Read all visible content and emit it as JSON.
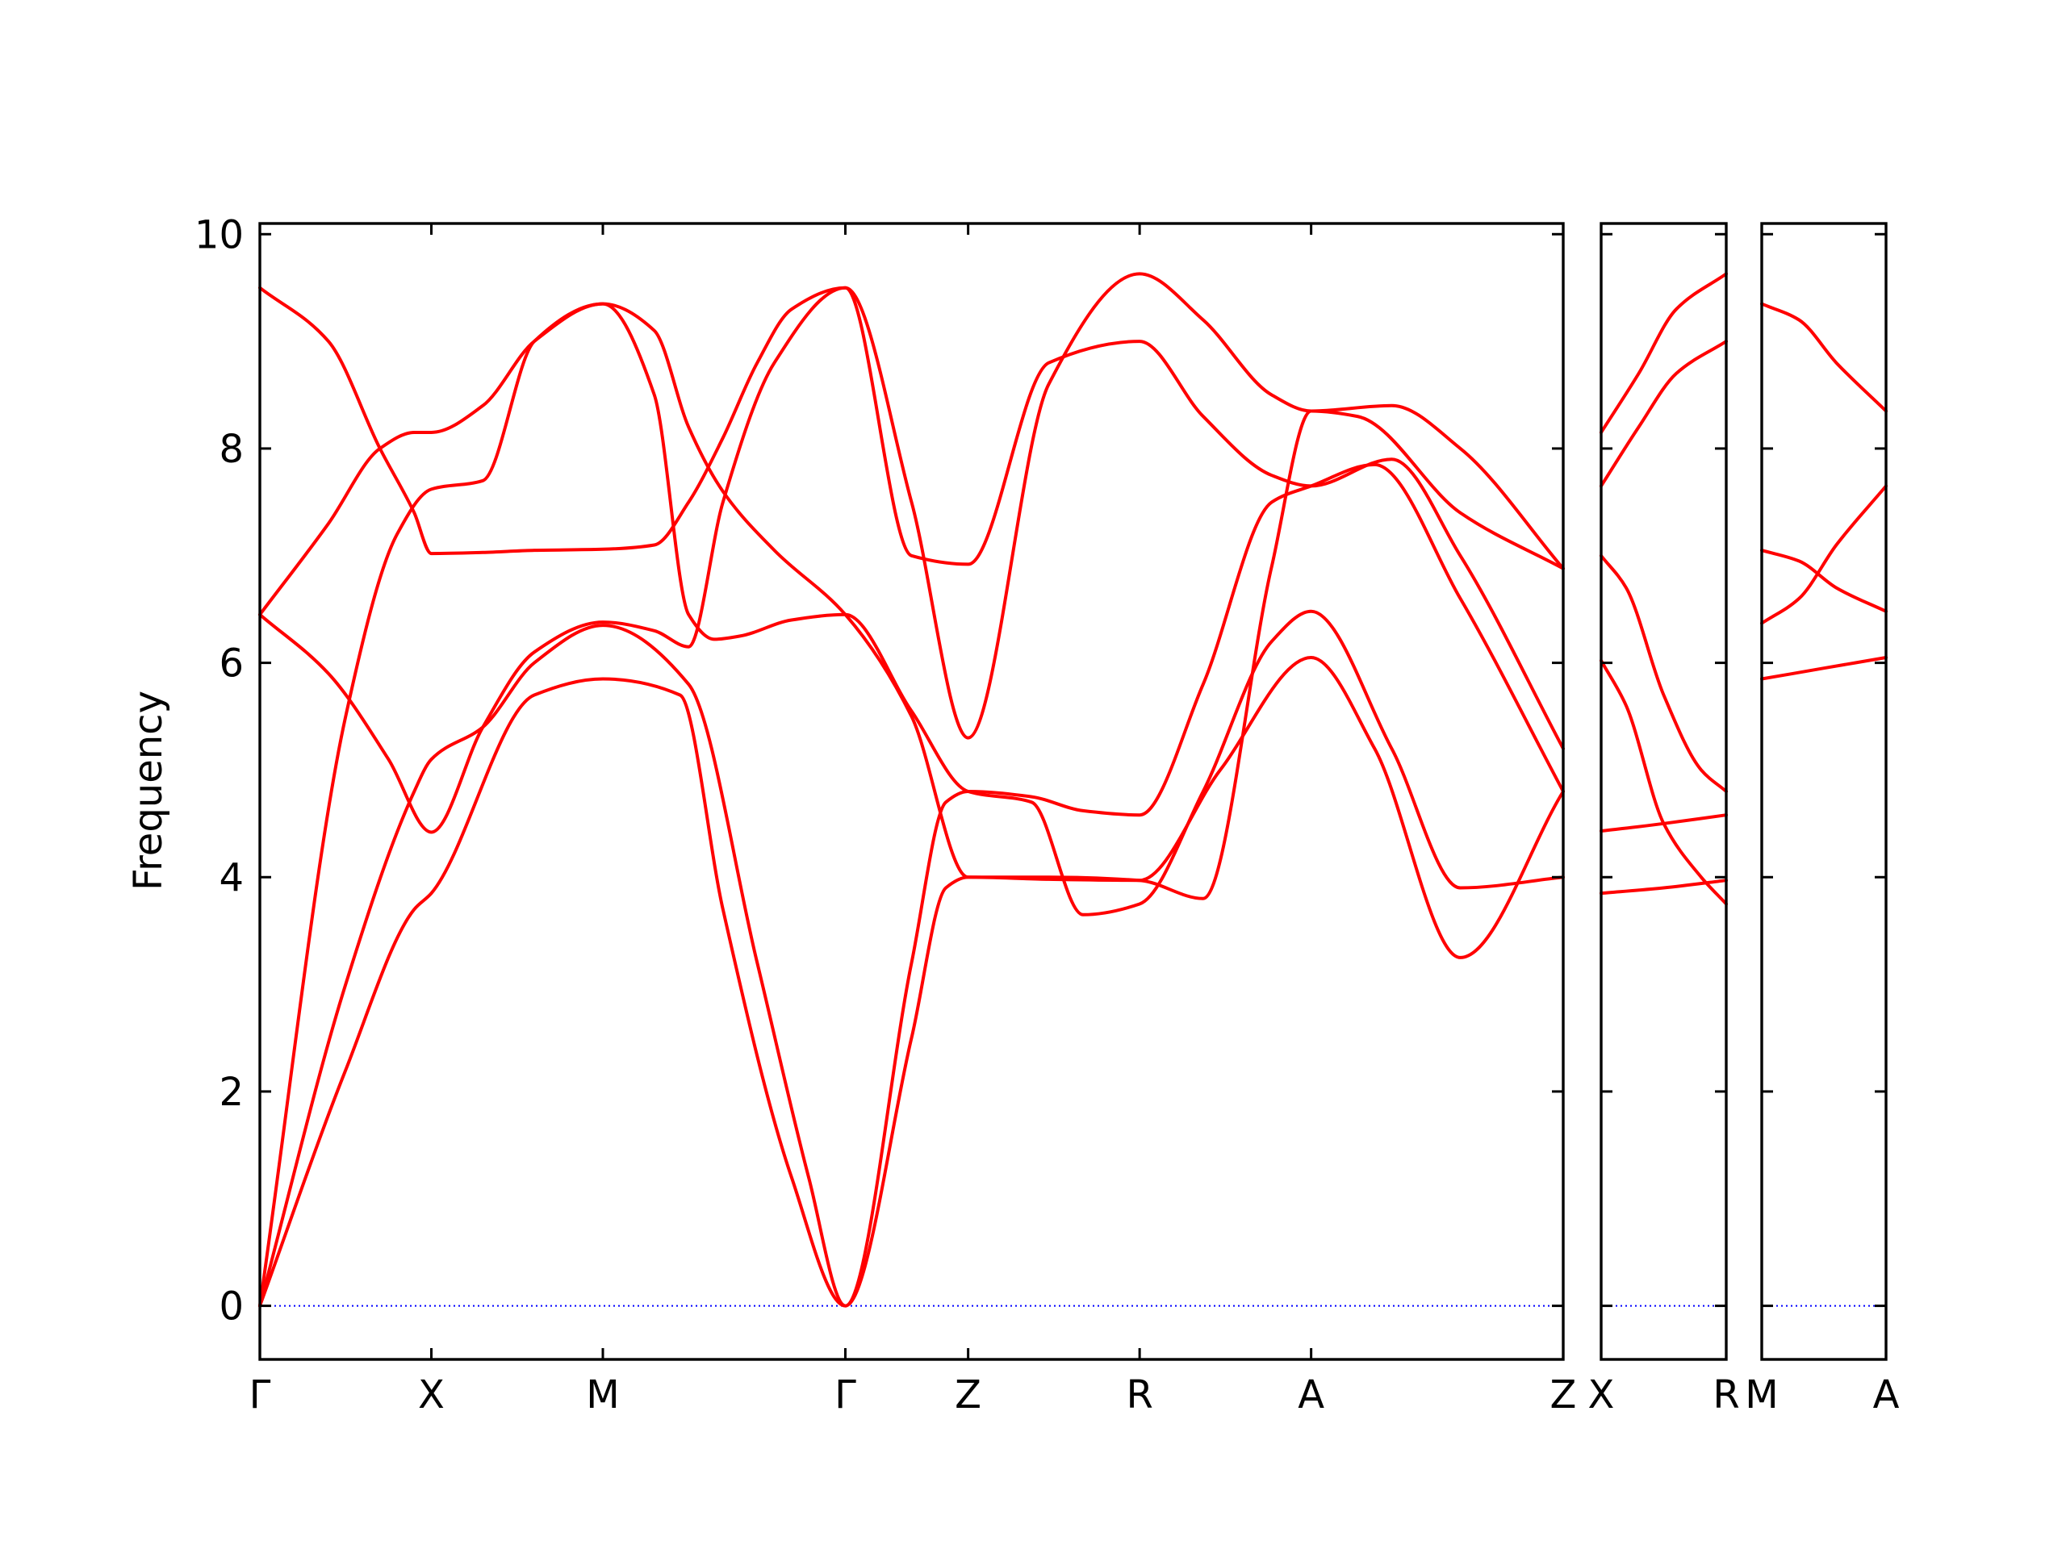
{
  "chart_data": {
    "type": "line",
    "title": "",
    "xlabel": "",
    "ylabel": "Frequency",
    "ylim": [
      -0.5,
      10.1
    ],
    "yticks": [
      0,
      2,
      4,
      6,
      8,
      10
    ],
    "colors": {
      "bands": "#ff0000",
      "zero_line": "#0000ff",
      "frame": "#000000"
    },
    "grid": false,
    "legend": "none",
    "panels": [
      {
        "xlim": [
          0,
          7.6
        ],
        "labels": [
          {
            "pos": 0,
            "text": "Γ"
          },
          {
            "pos": 1,
            "text": "X"
          },
          {
            "pos": 2,
            "text": "M"
          },
          {
            "pos": 3.414,
            "text": "Γ"
          },
          {
            "pos": 4.13,
            "text": "Z"
          },
          {
            "pos": 5.13,
            "text": "R"
          },
          {
            "pos": 6.13,
            "text": "A"
          },
          {
            "pos": 7.6,
            "text": "Z"
          }
        ],
        "series": [
          {
            "x": [
              0,
              0.5,
              0.9,
              1,
              1.6,
              2,
              2.45,
              2.7,
              3.1,
              3.414,
              3.8,
              4.0,
              4.13,
              4.6,
              5.13,
              5.6,
              6.13,
              6.5,
              7.0,
              7.6
            ],
            "values": [
              0,
              2.2,
              3.7,
              3.85,
              5.7,
              5.85,
              5.7,
              3.7,
              1.2,
              0,
              2.5,
              3.9,
              4.0,
              3.98,
              3.97,
              5.0,
              6.05,
              5.2,
              3.25,
              4.8
            ]
          },
          {
            "x": [
              0,
              0.5,
              0.9,
              1,
              1.3,
              1.6,
              2,
              2.5,
              2.9,
              3.2,
              3.414,
              3.8,
              4.0,
              4.13,
              4.5,
              4.8,
              5.13,
              5.5,
              5.9,
              6.13,
              6.5,
              7.0,
              7.6
            ],
            "values": [
              0,
              3.0,
              4.8,
              5.1,
              5.4,
              6.0,
              6.35,
              5.8,
              3.2,
              1.2,
              0,
              3.2,
              4.7,
              4.8,
              4.75,
              4.62,
              4.58,
              5.8,
              7.5,
              7.65,
              7.85,
              6.6,
              4.8
            ]
          },
          {
            "x": [
              0,
              0.5,
              0.8,
              1,
              1.3,
              1.6,
              2,
              2.3,
              2.5,
              2.65,
              2.8,
              3.1,
              3.414,
              3.8,
              4.13,
              4.5,
              4.8,
              5.13,
              5.5,
              5.9,
              6.13,
              6.6,
              7.0,
              7.6
            ],
            "values": [
              0,
              5.5,
              7.2,
              7.62,
              7.7,
              9.0,
              9.35,
              8.5,
              6.45,
              6.22,
              6.25,
              6.4,
              6.45,
              5.55,
              4.8,
              4.7,
              3.65,
              3.75,
              4.8,
              6.2,
              6.48,
              5.2,
              3.9,
              4.0
            ]
          },
          {
            "x": [
              0,
              0.4,
              0.75,
              1,
              1.3,
              1.6,
              2,
              2.3,
              2.5,
              2.7,
              3.0,
              3.414,
              3.8,
              4.13,
              4.6,
              5.13,
              5.5,
              5.9,
              6.13,
              6.6,
              7.0,
              7.6
            ],
            "values": [
              6.45,
              5.9,
              5.1,
              4.42,
              5.4,
              6.1,
              6.38,
              6.3,
              6.15,
              7.5,
              8.8,
              9.5,
              7.0,
              6.92,
              8.8,
              9.0,
              8.3,
              7.75,
              7.65,
              7.9,
              7.0,
              5.2
            ]
          },
          {
            "x": [
              0,
              0.4,
              0.7,
              0.9,
              1,
              1.3,
              1.6,
              2,
              2.3,
              2.5,
              2.7,
              3.0,
              3.414,
              3.8,
              4.13,
              4.6,
              5.13,
              5.5,
              5.9,
              6.13,
              6.4,
              7.0,
              7.6
            ],
            "values": [
              6.45,
              7.3,
              8.0,
              8.15,
              8.15,
              8.4,
              9.0,
              9.35,
              9.1,
              8.2,
              7.6,
              7.05,
              6.45,
              5.5,
              4.0,
              4.0,
              3.97,
              3.8,
              6.9,
              8.35,
              8.3,
              7.4,
              6.88
            ]
          },
          {
            "x": [
              0,
              0.4,
              0.7,
              0.9,
              1,
              1.3,
              1.6,
              2,
              2.3,
              2.5,
              2.7,
              2.9,
              3.1,
              3.414,
              3.8,
              4.13,
              4.6,
              5.13,
              5.5,
              5.9,
              6.13,
              6.6,
              7.0,
              7.6
            ],
            "values": [
              9.5,
              9.0,
              8.0,
              7.4,
              7.02,
              7.03,
              7.05,
              7.06,
              7.1,
              7.5,
              8.1,
              8.8,
              9.3,
              9.5,
              7.5,
              5.3,
              8.6,
              9.63,
              9.2,
              8.5,
              8.35,
              8.4,
              8.0,
              6.88
            ]
          }
        ]
      },
      {
        "xlim": [
          0,
          1
        ],
        "labels": [
          {
            "pos": 0,
            "text": "X"
          },
          {
            "pos": 1,
            "text": "R"
          }
        ],
        "series": [
          {
            "x": [
              0,
              0.5,
              1
            ],
            "values": [
              3.85,
              3.9,
              3.97
            ]
          },
          {
            "x": [
              0,
              0.5,
              1
            ],
            "values": [
              4.43,
              4.5,
              4.58
            ]
          },
          {
            "x": [
              0,
              0.2,
              0.5,
              0.8,
              1
            ],
            "values": [
              6.02,
              5.6,
              4.5,
              4.0,
              3.75
            ]
          },
          {
            "x": [
              0,
              0.2,
              0.5,
              0.8,
              1
            ],
            "values": [
              7.0,
              6.7,
              5.7,
              5.0,
              4.8
            ]
          },
          {
            "x": [
              0,
              0.3,
              0.6,
              1
            ],
            "values": [
              7.65,
              8.2,
              8.7,
              9.0
            ]
          },
          {
            "x": [
              0,
              0.3,
              0.6,
              1
            ],
            "values": [
              8.15,
              8.7,
              9.3,
              9.63
            ]
          }
        ]
      },
      {
        "xlim": [
          0,
          1
        ],
        "labels": [
          {
            "pos": 0,
            "text": "M"
          },
          {
            "pos": 1,
            "text": "A"
          }
        ],
        "series": [
          {
            "x": [
              0,
              0.5,
              1
            ],
            "values": [
              5.85,
              5.95,
              6.05
            ]
          },
          {
            "x": [
              0,
              0.3,
              0.6,
              1
            ],
            "values": [
              6.37,
              6.6,
              7.1,
              7.65
            ]
          },
          {
            "x": [
              0,
              0.3,
              0.6,
              1
            ],
            "values": [
              7.05,
              6.95,
              6.7,
              6.48
            ]
          },
          {
            "x": [
              0,
              0.3,
              0.6,
              1
            ],
            "values": [
              9.35,
              9.2,
              8.8,
              8.35
            ]
          }
        ]
      }
    ]
  }
}
